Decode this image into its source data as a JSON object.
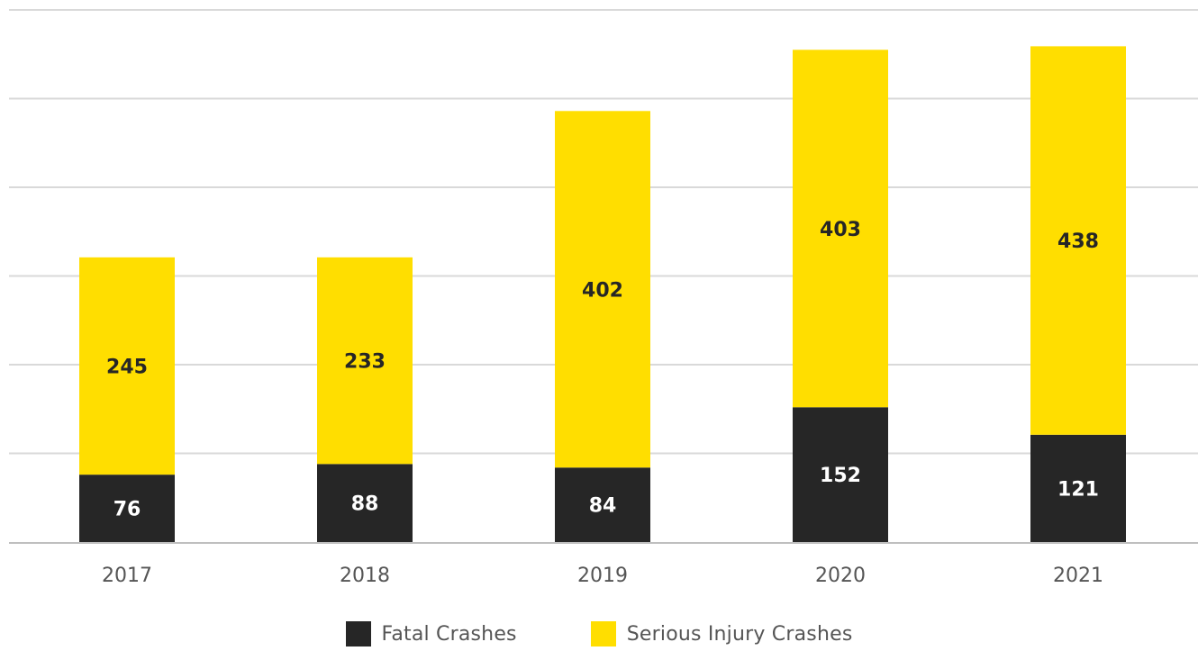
{
  "chart_data": {
    "type": "bar",
    "stacked": true,
    "categories": [
      "2017",
      "2018",
      "2019",
      "2020",
      "2021"
    ],
    "series": [
      {
        "name": "Fatal Crashes",
        "values": [
          76,
          88,
          84,
          152,
          121
        ],
        "color": "#262626"
      },
      {
        "name": "Serious Injury Crashes",
        "values": [
          245,
          233,
          402,
          403,
          438
        ],
        "color": "#FFDE00"
      }
    ],
    "title": "",
    "xlabel": "",
    "ylabel": "",
    "ylim": [
      0,
      600
    ],
    "gridlines": [
      0,
      100,
      200,
      300,
      400,
      500,
      600
    ],
    "grid": true,
    "y_tick_labels_shown": false,
    "legend_position": "bottom-center",
    "data_labels": true
  },
  "colors": {
    "gridline": "#d9d9d9",
    "axis": "#bfbfbf",
    "label_on_dark": "#ffffff",
    "label_on_light": "#262626",
    "tick_text": "#555555"
  }
}
